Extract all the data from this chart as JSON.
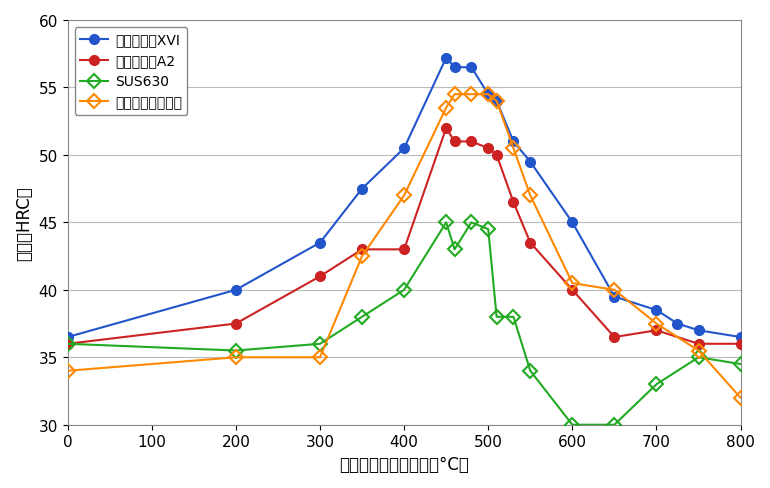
{
  "title": "",
  "xlabel": "時効硬化熱処理温度（°C）",
  "ylabel": "硬度（HRC）",
  "xlim": [
    0,
    800
  ],
  "ylim": [
    30.0,
    60.0
  ],
  "xticks": [
    0,
    100,
    200,
    300,
    400,
    500,
    600,
    700,
    800
  ],
  "yticks": [
    30.0,
    35.0,
    40.0,
    45.0,
    50.0,
    55.0,
    60.0
  ],
  "series": [
    {
      "label": "シリコロイXVI",
      "color": "#2255CC",
      "marker": "o",
      "marker_fill": "#2255CC",
      "x": [
        0,
        200,
        300,
        350,
        400,
        450,
        460,
        480,
        500,
        510,
        530,
        550,
        600,
        650,
        700,
        725,
        750,
        800
      ],
      "y": [
        36.5,
        40.0,
        43.5,
        47.5,
        50.5,
        57.2,
        56.5,
        56.5,
        54.5,
        54.0,
        51.0,
        49.5,
        45.0,
        39.5,
        38.5,
        37.5,
        37.0,
        36.5
      ]
    },
    {
      "label": "シリコロイA2",
      "color": "#CC2222",
      "marker": "o",
      "marker_fill": "#CC2222",
      "x": [
        0,
        200,
        300,
        350,
        400,
        450,
        460,
        480,
        500,
        510,
        530,
        550,
        600,
        650,
        700,
        750,
        800
      ],
      "y": [
        36.0,
        37.5,
        41.0,
        43.0,
        43.0,
        52.0,
        51.0,
        51.0,
        50.5,
        50.0,
        46.5,
        43.5,
        40.0,
        36.5,
        37.0,
        36.0,
        36.0
      ]
    },
    {
      "label": "SUS630",
      "color": "#22AA22",
      "marker": "D",
      "marker_fill": "none",
      "marker_edge": "#22AA22",
      "x": [
        0,
        200,
        300,
        350,
        400,
        450,
        460,
        480,
        500,
        510,
        530,
        550,
        600,
        650,
        700,
        750,
        800
      ],
      "y": [
        36.0,
        35.5,
        36.0,
        38.0,
        40.0,
        45.0,
        43.0,
        45.0,
        44.5,
        38.0,
        38.0,
        34.0,
        30.0,
        30.0,
        33.0,
        35.0,
        34.5
      ]
    },
    {
      "label": "マルエージング鉰",
      "color": "#FF8800",
      "marker": "D",
      "marker_fill": "none",
      "marker_edge": "#FF8800",
      "x": [
        0,
        200,
        300,
        350,
        400,
        450,
        460,
        480,
        500,
        510,
        530,
        550,
        600,
        650,
        700,
        750,
        800
      ],
      "y": [
        34.0,
        35.0,
        35.0,
        42.5,
        47.0,
        53.5,
        54.5,
        54.5,
        54.5,
        54.0,
        50.5,
        47.0,
        40.5,
        40.0,
        37.5,
        35.5,
        32.0
      ]
    }
  ],
  "legend_loc": "upper left",
  "grid_color": "#BBBBBB",
  "background_color": "#FFFFFF",
  "font_size": 12,
  "tick_label_size": 11
}
